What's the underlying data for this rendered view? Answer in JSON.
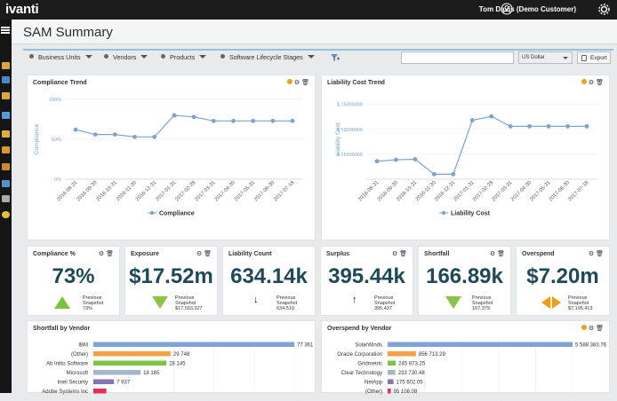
{
  "app": {
    "logo": "ivanti",
    "user": "Tom Davis (Demo Customer)"
  },
  "page": {
    "title": "SAM Summary"
  },
  "filters": [
    "Business Units",
    "Vendors",
    "Products",
    "Software Lifecycle Stages"
  ],
  "search": {
    "placeholder": ""
  },
  "currency": {
    "value": "US Dollar"
  },
  "export": {
    "label": "Export"
  },
  "colors": {
    "accent": "#7ea3cf",
    "brand": "#1c1c1c",
    "kpi_text": "#1f4958",
    "up": "#7dc143",
    "down": "#8bc34a",
    "warn": "#f39c12",
    "bar_blue": "#7ea3d6",
    "bar_orange": "#f4a146",
    "bar_green": "#7cc444",
    "bar_gray": "#a4b6c9",
    "bar_red": "#e0305c",
    "bar_purple": "#8873b5"
  },
  "compliance_trend": {
    "title": "Compliance Trend",
    "chart_data": {
      "type": "line",
      "title": "Compliance Trend",
      "ylabel": "Compliance",
      "legend": "Compliance",
      "x": [
        "2016-08-31",
        "2016-09-30",
        "2016-10-31",
        "2016-11-30",
        "2016-12-31",
        "2017-01-31",
        "2017-02-28",
        "2017-03-31",
        "2017-04-30",
        "2017-05-31",
        "2017-06-30",
        "2017-07-18"
      ],
      "yticks": [
        "100%",
        "50%",
        "0%"
      ],
      "ylim": [
        0,
        100
      ],
      "values": [
        62,
        56,
        56,
        53,
        53,
        80,
        78,
        73,
        73,
        73,
        73,
        73
      ]
    }
  },
  "liability_trend": {
    "title": "Liability Cost Trend",
    "chart_data": {
      "type": "line",
      "title": "Liability Cost Trend",
      "ylabel": "Liability Cost",
      "legend": "Liability Cost",
      "x": [
        "2016-08-31",
        "2016-09-30",
        "2016-10-31",
        "2016-11-30",
        "2016-12-31",
        "2017-01-31",
        "2017-02-28",
        "2017-03-31",
        "2017-04-30",
        "2017-05-31",
        "2017-06-30",
        "2017-07-18"
      ],
      "yticks": [
        "$ 75000000",
        "$ 50000000",
        "$ 25000000"
      ],
      "ylim": [
        0,
        80000000
      ],
      "values": [
        18000000,
        19500000,
        20000000,
        5000000,
        5000000,
        59000000,
        63000000,
        53000000,
        53000000,
        53000000,
        53000000,
        53000000
      ]
    }
  },
  "kpis": [
    {
      "title": "Compliance %",
      "value": "73%",
      "prev_label": "Previous Snapshot",
      "prev_value": "73%",
      "trend": "up"
    },
    {
      "title": "Exposure",
      "value": "$17.52m",
      "prev_label": "Previous Snapshot",
      "prev_value": "$17,593,327",
      "trend": "down"
    },
    {
      "title": "Liability Count",
      "value": "634.14k",
      "prev_label": "Previous Snapshot",
      "prev_value": "634,519",
      "trend": "down-arrow"
    },
    {
      "title": "Surplus",
      "value": "395.44k",
      "prev_label": "Previous Snapshot",
      "prev_value": "395,437",
      "trend": "up-arrow"
    },
    {
      "title": "Shortfall",
      "value": "166.89k",
      "prev_label": "Previous Snapshot",
      "prev_value": "167,379",
      "trend": "down"
    },
    {
      "title": "Overspend",
      "value": "$7.20m",
      "prev_label": "Previous Snapshot",
      "prev_value": "$7,195,413",
      "trend": "flat"
    }
  ],
  "shortfall_by_vendor": {
    "title": "Shortfall by Vendor",
    "chart_data": {
      "type": "bar",
      "orientation": "horizontal",
      "title": "Shortfall by Vendor",
      "categories": [
        "IBM",
        "(Other)",
        "Ab Initio Software",
        "Microsoft",
        "Intel Security",
        "Adobe Systems Inc"
      ],
      "values": [
        77361,
        29748,
        28145,
        18165,
        7937,
        5000
      ],
      "labels": [
        "77 361",
        "29 748",
        "28 145",
        "18 165",
        "7 937",
        ""
      ],
      "colors": [
        "#7ea3d6",
        "#f4a146",
        "#7cc444",
        "#a4b6c9",
        "#8873b5",
        "#e0305c"
      ]
    }
  },
  "overspend_by_vendor": {
    "title": "Overspend by Vendor",
    "chart_data": {
      "type": "bar",
      "orientation": "horizontal",
      "title": "Overspend by Vendor",
      "categories": [
        "SolarWinds",
        "Oracle Corporation",
        "Gridmetric",
        "Clear Technology",
        "NetApp",
        "(Other)"
      ],
      "values": [
        5588383.76,
        856713.29,
        245873.25,
        233730.48,
        175602.05,
        95108.08
      ],
      "labels": [
        "5 588 383.76",
        "856 713.29",
        "245 873.25",
        "233 730.48",
        "175 602.05",
        "95 108.08"
      ],
      "colors": [
        "#7ea3d6",
        "#f4a146",
        "#7cc444",
        "#a4b6c9",
        "#8873b5",
        "#e0305c"
      ]
    }
  }
}
